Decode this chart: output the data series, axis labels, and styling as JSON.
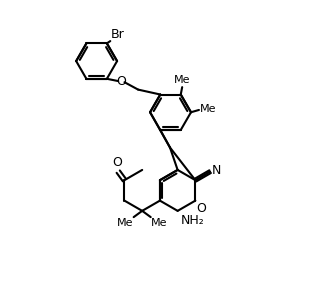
{
  "bg_color": "#ffffff",
  "line_color": "#000000",
  "line_width": 1.5,
  "font_size": 9,
  "figsize": [
    3.24,
    2.87
  ],
  "dpi": 100,
  "xlim": [
    0.0,
    8.5
  ],
  "ylim": [
    0.2,
    10.2
  ]
}
